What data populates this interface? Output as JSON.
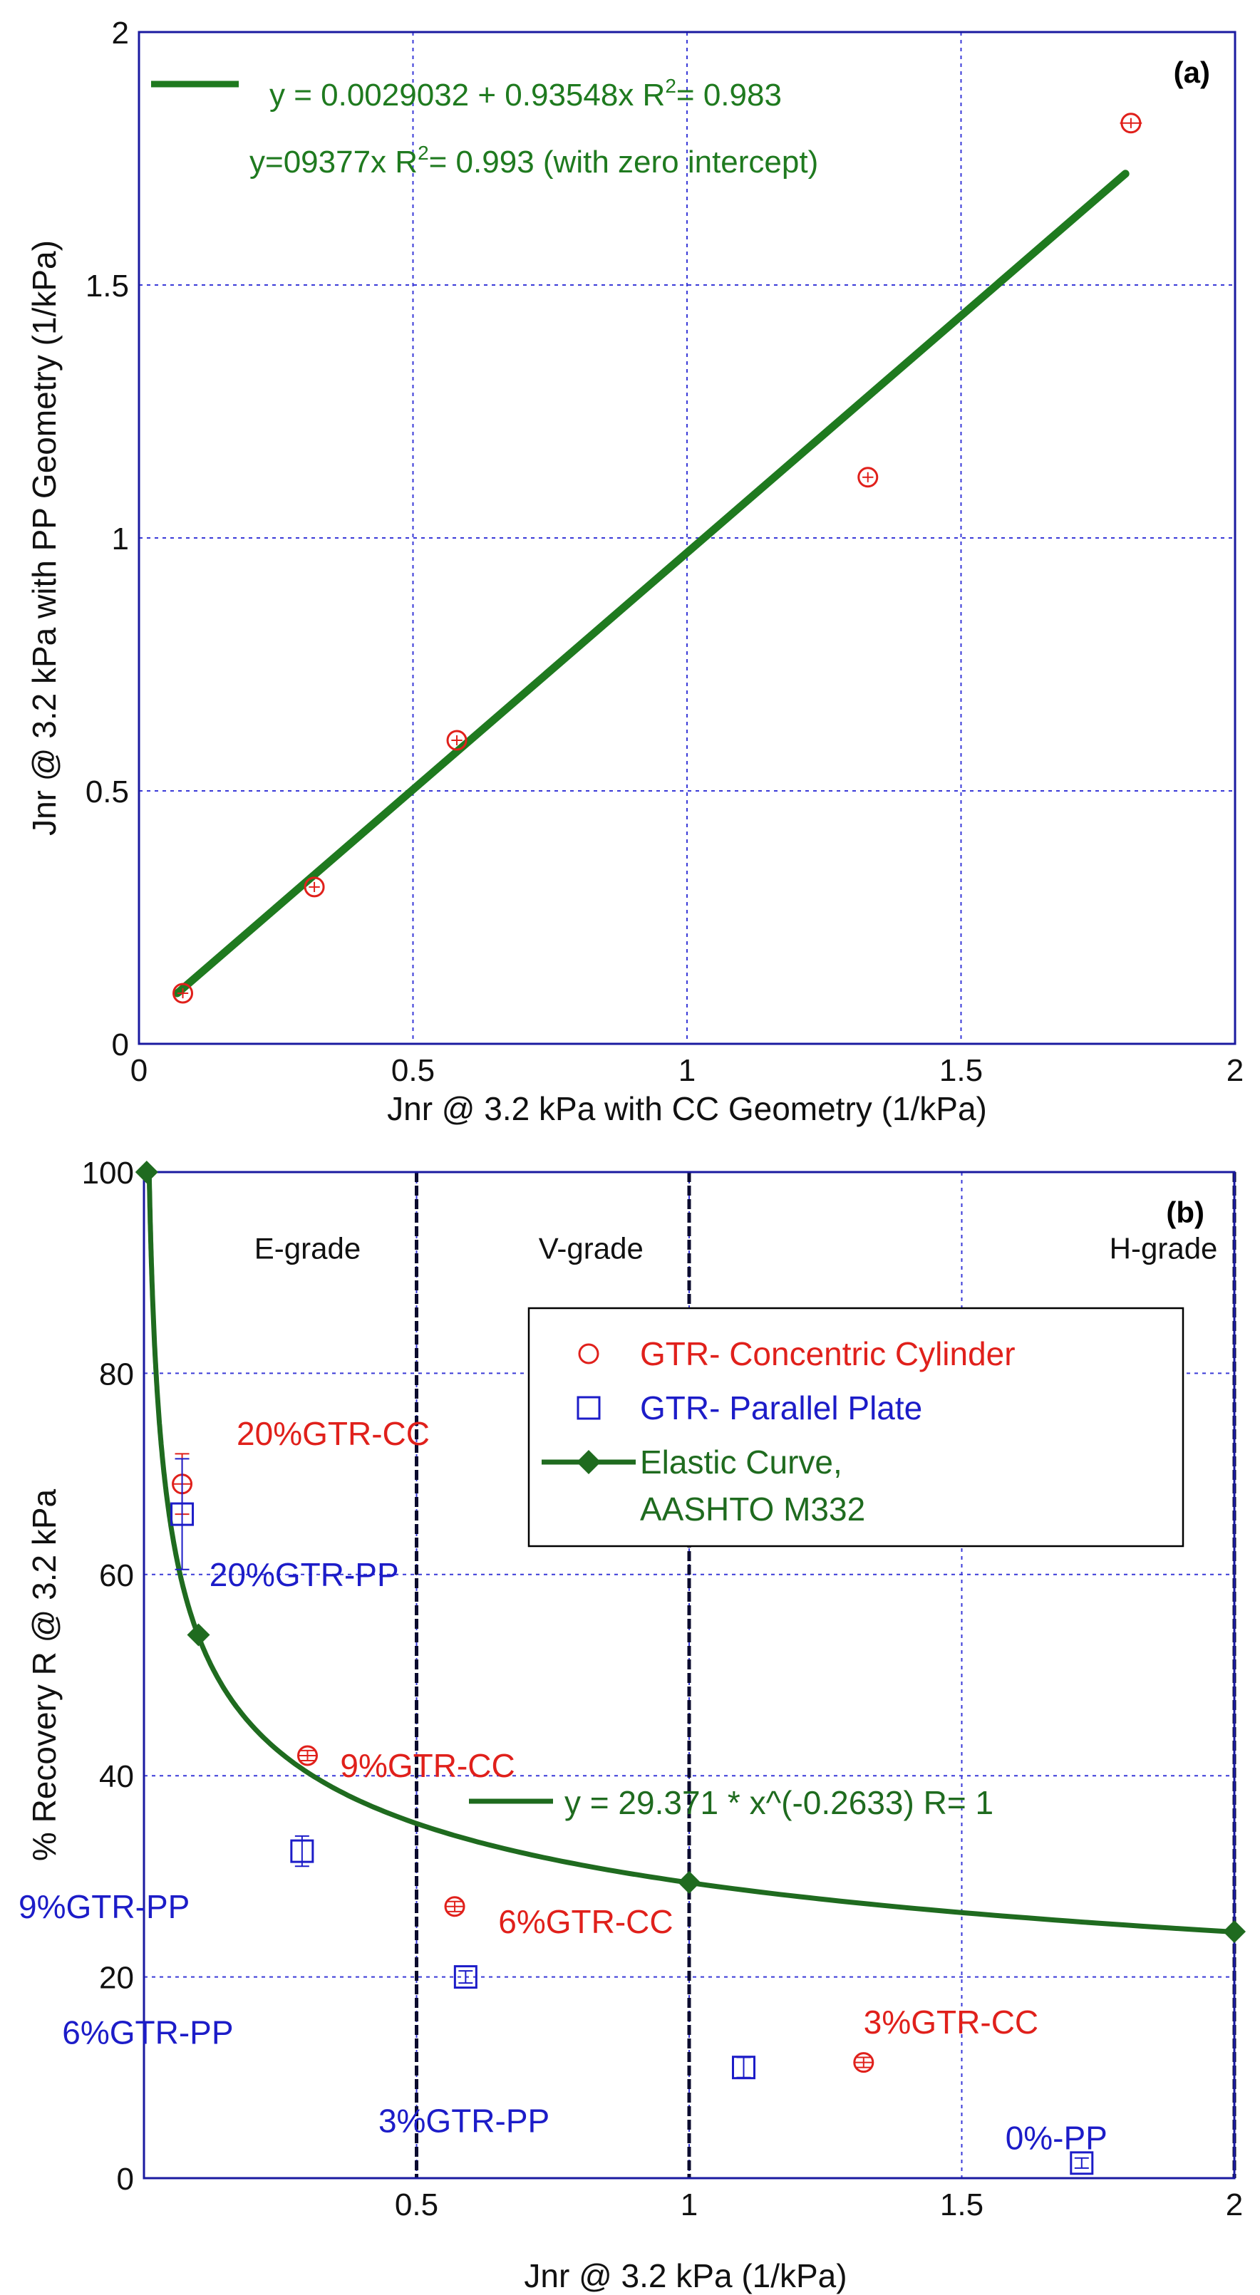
{
  "chart_data": [
    {
      "id": "a",
      "type": "scatter",
      "panel_label": "(a)",
      "xlabel": "Jnr @ 3.2 kPa with CC Geometry (1/kPa)",
      "ylabel": "Jnr @ 3.2 kPa with PP Geometry (1/kPa)",
      "xlim": [
        0,
        2
      ],
      "ylim": [
        0,
        2
      ],
      "xticks": [
        0,
        0.5,
        1,
        1.5,
        2
      ],
      "xtick_labels": [
        "0",
        "0.5",
        "1",
        "1.5",
        "2"
      ],
      "yticks": [
        0,
        0.5,
        1,
        1.5,
        2
      ],
      "ytick_labels": [
        "0",
        "0.5",
        "1",
        "1.5",
        "2"
      ],
      "grid": true,
      "series": [
        {
          "name": "GTR CC vs PP",
          "marker": "circle",
          "color": "#e0201b",
          "x": [
            0.08,
            0.32,
            0.58,
            1.33,
            1.81
          ],
          "y": [
            0.1,
            0.31,
            0.6,
            1.12,
            1.82
          ],
          "xerr": [
            0.01,
            0.01,
            0.01,
            0.01,
            0.02
          ],
          "yerr": [
            0.01,
            0.01,
            0.01,
            0.01,
            0.01
          ]
        }
      ],
      "fit_line": {
        "color": "#1f7a1f",
        "x": [
          0.07,
          1.8
        ],
        "y": [
          0.1,
          1.72
        ],
        "legend_text": "y = 0.0029032 + 0.93548x   R",
        "legend_r2": "= 0.983",
        "note_text": "y=09377x  R",
        "note_r2": "= 0.993 (with zero intercept)",
        "superscript": "2"
      }
    },
    {
      "id": "b",
      "type": "scatter",
      "panel_label": "(b)",
      "xlabel": "Jnr @ 3.2 kPa (1/kPa)",
      "ylabel": "% Recovery R @ 3.2 kPa",
      "xlim": [
        0,
        2
      ],
      "ylim": [
        0,
        100
      ],
      "xticks": [
        0.5,
        1,
        1.5,
        2
      ],
      "xtick_labels": [
        "0.5",
        "1",
        "1.5",
        "2"
      ],
      "yticks": [
        0,
        20,
        40,
        60,
        80,
        100
      ],
      "ytick_labels": [
        "0",
        "20",
        "40",
        "60",
        "80",
        "100"
      ],
      "grid": true,
      "grade_lines": [
        0.5,
        1,
        2
      ],
      "grade_labels": [
        {
          "text": "E-grade",
          "x": 0.3
        },
        {
          "text": "V-grade",
          "x": 0.82
        },
        {
          "text": "H-grade",
          "x": 1.87
        }
      ],
      "series": [
        {
          "name": "GTR- Concentric Cylinder",
          "marker": "circle",
          "color": "#e0201b",
          "x": [
            0.07,
            0.3,
            0.57,
            1.32
          ],
          "y": [
            69,
            42,
            27,
            11.5
          ],
          "yerr": [
            3,
            0.5,
            0.5,
            0.5
          ],
          "point_labels": [
            "20%GTR-CC",
            "9%GTR-CC",
            "6%GTR-CC",
            "3%GTR-CC"
          ]
        },
        {
          "name": "GTR- Parallel Plate",
          "marker": "square",
          "color": "#1c1cc8",
          "x": [
            0.07,
            0.29,
            0.59,
            1.1,
            1.72
          ],
          "y": [
            66,
            32.5,
            20,
            11,
            1.5
          ],
          "yerr": [
            5.5,
            1.5,
            0.6,
            1,
            0.5
          ],
          "point_labels": [
            "20%GTR-PP",
            "9%GTR-PP",
            "6%GTR-PP",
            "3%GTR-PP",
            "0%-PP"
          ]
        },
        {
          "name": "Elastic Curve,",
          "name_line2": "AASHTO M332",
          "marker": "diamond",
          "color": "#1f6b1f",
          "equation": "y = 29.371 * x^(-0.2633)   R= 1",
          "coefficient": 29.371,
          "exponent": -0.2633,
          "x_range": [
            0.005,
            2
          ],
          "curve_points": [
            {
              "x": 0.005,
              "y": 100
            },
            {
              "x": 0.1,
              "y": 54
            },
            {
              "x": 1,
              "y": 29.4
            },
            {
              "x": 2,
              "y": 24.5
            }
          ]
        }
      ]
    }
  ]
}
